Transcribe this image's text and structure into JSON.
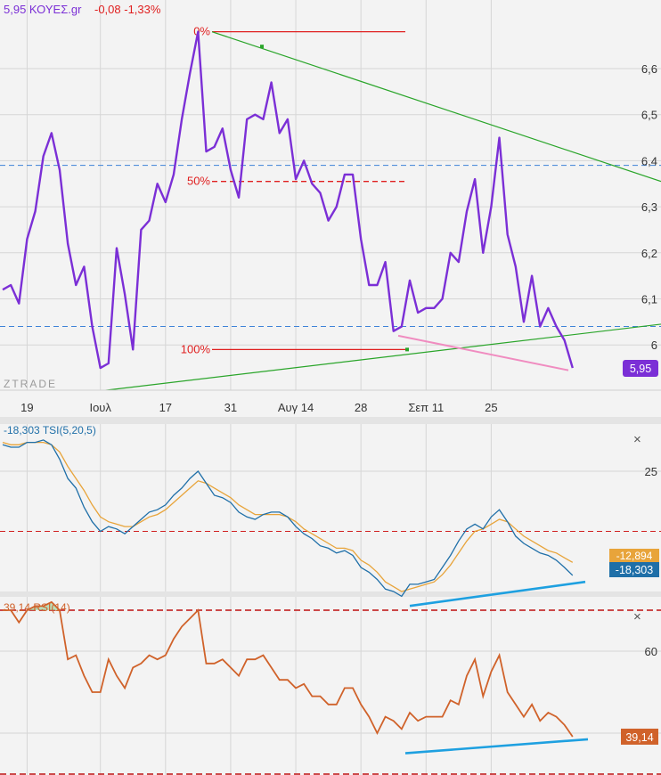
{
  "header": {
    "symbol": "5,95 ΚΟΥΕΣ.gr",
    "change": "-0,08 -1,33%",
    "watermark": "ZTRADE",
    "last_price_label": "5,95"
  },
  "colors": {
    "price": "#7b2fd6",
    "fib": "#e02020",
    "trend": "#2aa52a",
    "pink": "#f08cc0",
    "tsi": "#1f6fa8",
    "tsi_signal": "#e8a43a",
    "rsi": "#d0622a",
    "blue_dash": "#3d82d8",
    "cyan_line": "#1ea0e0",
    "grid": "#d6d6d6"
  },
  "x_axis": {
    "ticks": [
      {
        "i": 3,
        "label": "19"
      },
      {
        "i": 12,
        "label": "Ιουλ"
      },
      {
        "i": 20,
        "label": "17"
      },
      {
        "i": 28,
        "label": "31"
      },
      {
        "i": 36,
        "label": "Αυγ 14"
      },
      {
        "i": 44,
        "label": "28"
      },
      {
        "i": 52,
        "label": "Σεπ 11"
      },
      {
        "i": 60,
        "label": "25"
      }
    ]
  },
  "chart_data": [
    {
      "type": "line",
      "title": "ΚΟΥΕΣ.gr",
      "ylim": [
        5.9,
        6.7
      ],
      "yticks": [
        6,
        6.1,
        6.2,
        6.3,
        6.4,
        6.5,
        6.6
      ],
      "ytick_labels": [
        "6",
        "6,1",
        "6,2",
        "6,3",
        "6,4",
        "6,5",
        "6,6"
      ],
      "series": [
        {
          "values": [
            6.12,
            6.13,
            6.09,
            6.23,
            6.29,
            6.41,
            6.46,
            6.38,
            6.22,
            6.13,
            6.17,
            6.04,
            5.95,
            5.96,
            6.21,
            6.11,
            5.99,
            6.25,
            6.27,
            6.35,
            6.31,
            6.37,
            6.49,
            6.59,
            6.68,
            6.42,
            6.43,
            6.47,
            6.38,
            6.32,
            6.49,
            6.5,
            6.49,
            6.57,
            6.46,
            6.49,
            6.36,
            6.4,
            6.35,
            6.33,
            6.27,
            6.3,
            6.37,
            6.37,
            6.23,
            6.13,
            6.13,
            6.18,
            6.03,
            6.04,
            6.14,
            6.07,
            6.08,
            6.08,
            6.1,
            6.2,
            6.18,
            6.29,
            6.36,
            6.2,
            6.3,
            6.45,
            6.24,
            6.17,
            6.05,
            6.15,
            6.04,
            6.08,
            6.04,
            6.01,
            5.95
          ]
        }
      ],
      "fib_levels": [
        {
          "label": "0%",
          "value": 6.68
        },
        {
          "label": "50%",
          "value": 6.355
        },
        {
          "label": "100%",
          "value": 5.99
        }
      ],
      "horizontal_dashed": [
        6.39,
        6.04
      ],
      "last_value_label": "5,95"
    },
    {
      "type": "line",
      "title": "TSI(5,20,5)",
      "ylim": [
        -30,
        40
      ],
      "yticks": [
        25
      ],
      "ytick_labels": [
        "25"
      ],
      "reference_line": 0,
      "series": [
        {
          "name": "TSI",
          "last_label": "-18,303",
          "values": [
            36,
            35,
            35,
            37,
            37,
            38,
            36,
            30,
            22,
            18,
            10,
            4,
            0,
            2,
            1,
            -1,
            2,
            5,
            8,
            9,
            11,
            15,
            18,
            22,
            25,
            20,
            15,
            14,
            12,
            8,
            6,
            5,
            7,
            8,
            8,
            6,
            2,
            -1,
            -3,
            -6,
            -7,
            -9,
            -8,
            -10,
            -15,
            -17,
            -20,
            -24,
            -25,
            -27,
            -22,
            -22,
            -21,
            -20,
            -15,
            -10,
            -4,
            1,
            3,
            1,
            6,
            9,
            4,
            -2,
            -5,
            -7,
            -9,
            -10,
            -12,
            -15,
            -18.3
          ]
        },
        {
          "name": "signal",
          "last_label": "-12,894",
          "values": [
            37,
            36,
            36,
            37,
            37,
            37,
            36,
            33,
            27,
            22,
            17,
            11,
            6,
            4,
            3,
            2,
            2,
            4,
            6,
            7,
            9,
            12,
            15,
            18,
            21,
            20,
            18,
            16,
            14,
            11,
            9,
            7,
            7,
            7,
            7,
            6,
            4,
            1,
            -1,
            -3,
            -5,
            -7,
            -7,
            -8,
            -12,
            -14,
            -17,
            -21,
            -23,
            -25,
            -24,
            -23,
            -22,
            -21,
            -18,
            -14,
            -9,
            -4,
            0,
            1,
            3,
            5,
            4,
            1,
            -2,
            -4,
            -6,
            -8,
            -9,
            -11,
            -12.9
          ]
        }
      ],
      "legend": "-18,303 TSI(5,20,5)"
    },
    {
      "type": "line",
      "title": "RSI(14)",
      "ylim": [
        30,
        78
      ],
      "yticks": [
        40,
        60
      ],
      "ytick_labels": [
        "40",
        "60"
      ],
      "reference_lines": [
        70,
        30
      ],
      "series": [
        {
          "name": "RSI",
          "last_label": "39,14",
          "values": [
            70,
            70,
            67,
            70,
            71,
            71,
            72,
            70,
            58,
            59,
            54,
            50,
            50,
            58,
            54,
            51,
            56,
            57,
            59,
            58,
            59,
            63,
            66,
            68,
            70,
            57,
            57,
            58,
            56,
            54,
            58,
            58,
            59,
            56,
            53,
            53,
            51,
            52,
            49,
            49,
            47,
            47,
            51,
            51,
            47,
            44,
            40,
            44,
            43,
            41,
            45,
            43,
            44,
            44,
            44,
            48,
            47,
            54,
            58,
            49,
            55,
            59,
            50,
            47,
            44,
            47,
            43,
            45,
            44,
            42,
            39.14
          ]
        }
      ],
      "legend": "39,14 RSI(14)"
    }
  ]
}
